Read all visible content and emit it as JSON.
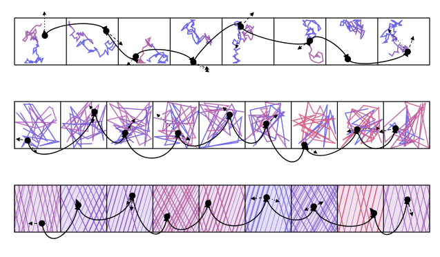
{
  "figure": {
    "rows": [
      {
        "id": "row-1",
        "panel_count": 8,
        "texture": "sparse-trajectory",
        "panels": [
          {
            "mix": 0.5
          },
          {
            "mix": 0.35
          },
          {
            "mix": 0.6
          },
          {
            "mix": 0.4
          },
          {
            "mix": 0.45
          },
          {
            "mix": 0.55
          },
          {
            "mix": 0.35
          },
          {
            "mix": 0.3
          }
        ]
      },
      {
        "id": "row-2",
        "panel_count": 9,
        "texture": "zigzag-lines",
        "panels": [
          {
            "mix": 0.2
          },
          {
            "mix": 0.25
          },
          {
            "mix": 0.3
          },
          {
            "mix": 0.45
          },
          {
            "mix": 0.35
          },
          {
            "mix": 0.4
          },
          {
            "mix": 0.8
          },
          {
            "mix": 0.75
          },
          {
            "mix": 0.6
          }
        ]
      },
      {
        "id": "row-3",
        "panel_count": 9,
        "texture": "dense-lattice",
        "panels": [
          {
            "mix": 0.5
          },
          {
            "mix": 0.3
          },
          {
            "mix": 0.35
          },
          {
            "mix": 0.7
          },
          {
            "mix": 0.65
          },
          {
            "mix": 0.1
          },
          {
            "mix": 0.25
          },
          {
            "mix": 0.85
          },
          {
            "mix": 0.5
          }
        ]
      }
    ],
    "colors": {
      "blue": "#5b55e6",
      "red": "#e8566a",
      "purple": "#9b5bd0",
      "frame": "#000000",
      "node": "#000000"
    },
    "icons": [
      "node-dot",
      "solid-arc-arrow",
      "dashed-arrow",
      "dotted-arrow"
    ]
  }
}
